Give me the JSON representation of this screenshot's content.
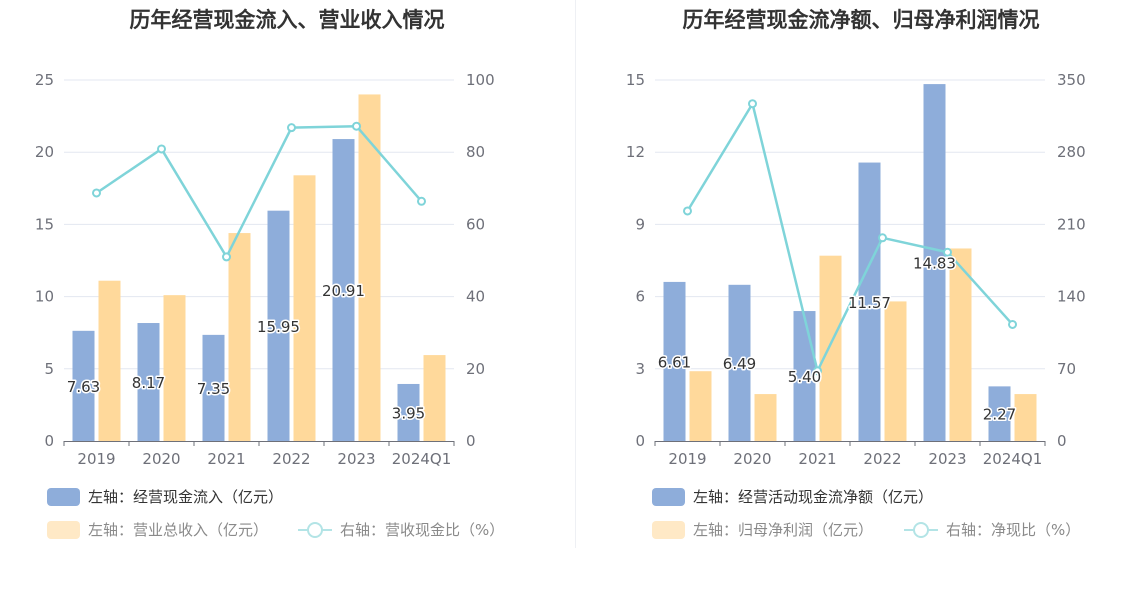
{
  "colors": {
    "bar1": "#8eadda",
    "bar2": "#ffd99b",
    "line": "#7fd4d9",
    "legend_line": "#b3e4e6",
    "grid": "#e3e7f0"
  },
  "chart_data": [
    {
      "type": "bar+line",
      "title": "历年经营现金流入、营业收入情况",
      "categories": [
        "2019",
        "2020",
        "2021",
        "2022",
        "2023",
        "2024Q1"
      ],
      "left_axis": {
        "min": 0,
        "max": 25,
        "ticks": [
          "0",
          "5",
          "10",
          "15",
          "20",
          "25"
        ]
      },
      "right_axis": {
        "min": 0,
        "max": 100,
        "ticks": [
          "0",
          "20",
          "40",
          "60",
          "80",
          "100"
        ]
      },
      "series": [
        {
          "name": "左轴：经营现金流入（亿元）",
          "type": "bar",
          "axis": "left",
          "values": [
            7.63,
            8.17,
            7.35,
            15.95,
            20.91,
            3.95
          ],
          "labels": [
            "7.63",
            "8.17",
            "7.35",
            "15.95",
            "20.91",
            "3.95"
          ]
        },
        {
          "name": "左轴：营业总收入（亿元）",
          "type": "bar",
          "axis": "left",
          "values": [
            11.1,
            10.1,
            14.4,
            18.4,
            24.0,
            5.95
          ]
        },
        {
          "name": "右轴：营收现金比（%）",
          "type": "line",
          "axis": "right",
          "values": [
            68.7,
            80.9,
            51.0,
            86.8,
            87.2,
            66.4
          ]
        }
      ]
    },
    {
      "type": "bar+line",
      "title": "历年经营现金流净额、归母净利润情况",
      "categories": [
        "2019",
        "2020",
        "2021",
        "2022",
        "2023",
        "2024Q1"
      ],
      "left_axis": {
        "min": 0,
        "max": 15,
        "ticks": [
          "0",
          "3",
          "6",
          "9",
          "12",
          "15"
        ]
      },
      "right_axis": {
        "min": 0,
        "max": 350,
        "ticks": [
          "0",
          "70",
          "140",
          "210",
          "280",
          "350"
        ]
      },
      "series": [
        {
          "name": "左轴：经营活动现金流净额（亿元）",
          "type": "bar",
          "axis": "left",
          "values": [
            6.61,
            6.49,
            5.4,
            11.57,
            14.83,
            2.27
          ],
          "labels": [
            "6.61",
            "6.49",
            "5.40",
            "11.57",
            "14.83",
            "2.27"
          ]
        },
        {
          "name": "左轴：归母净利润（亿元）",
          "type": "bar",
          "axis": "left",
          "values": [
            2.9,
            1.95,
            7.7,
            5.8,
            8.0,
            1.95
          ]
        },
        {
          "name": "右轴：净现比（%）",
          "type": "line",
          "axis": "right",
          "values": [
            223,
            327,
            68,
            197,
            183,
            113
          ]
        }
      ]
    }
  ]
}
